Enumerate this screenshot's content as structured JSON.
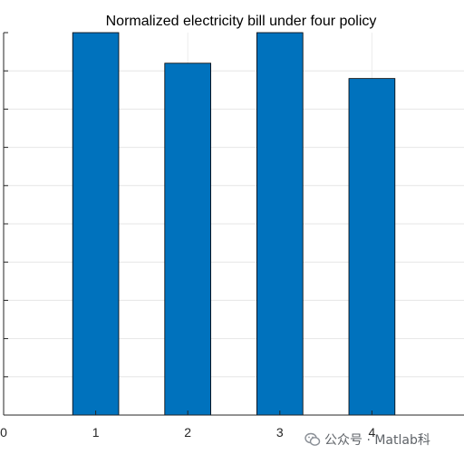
{
  "chart_data": {
    "type": "bar",
    "title": "Normalized electricity bill under four policy",
    "xlabel": "",
    "ylabel": "",
    "categories": [
      "1",
      "2",
      "3",
      "4"
    ],
    "values": [
      1.0,
      0.92,
      1.0,
      0.88
    ],
    "xlim": [
      0,
      5
    ],
    "xticks": [
      "0",
      "1",
      "2",
      "3",
      "4"
    ],
    "ylim": [
      0,
      1.0
    ],
    "grid": true,
    "bar_color": "#0072BD",
    "bar_edge_color": "#000000"
  },
  "watermark": {
    "icon": "wechat-logo-icon",
    "text": "公众号 · Matlab科"
  }
}
